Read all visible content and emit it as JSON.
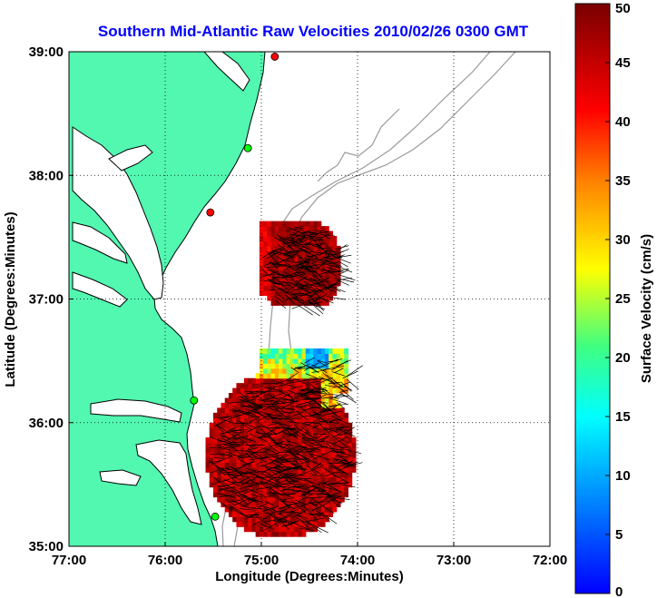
{
  "chart_data": {
    "type": "heatmap",
    "title": "Southern Mid-Atlantic Raw Velocities 2010/02/26 0300 GMT",
    "xlabel": "Longitude (Degrees:Minutes)",
    "ylabel": "Latitude (Degrees:Minutes)",
    "xlim": [
      -77,
      -72
    ],
    "ylim": [
      35,
      39
    ],
    "x_ticks": [
      {
        "value": -77,
        "label": "77:00"
      },
      {
        "value": -76,
        "label": "76:00"
      },
      {
        "value": -75,
        "label": "75:00"
      },
      {
        "value": -74,
        "label": "74:00"
      },
      {
        "value": -73,
        "label": "73:00"
      },
      {
        "value": -72,
        "label": "72:00"
      }
    ],
    "y_ticks": [
      {
        "value": 35,
        "label": "35:00"
      },
      {
        "value": 36,
        "label": "36:00"
      },
      {
        "value": 37,
        "label": "37:00"
      },
      {
        "value": 38,
        "label": "38:00"
      },
      {
        "value": 39,
        "label": "39:00"
      }
    ],
    "grid": true,
    "colorbar": {
      "label": "Surface Velocity (cm/s)",
      "range": [
        0,
        50
      ],
      "ticks": [
        0,
        5,
        10,
        15,
        20,
        25,
        30,
        35,
        40,
        45,
        50
      ],
      "tick_labels": [
        "0",
        "5",
        "10",
        "15",
        "20",
        "25",
        "30",
        "35",
        "40",
        "45",
        "50"
      ],
      "colormap": "jet"
    },
    "stations": [
      {
        "lon": -74.86,
        "lat": 38.96,
        "color": "#ff0000"
      },
      {
        "lon": -75.14,
        "lat": 38.22,
        "color": "#00ff00"
      },
      {
        "lon": -75.53,
        "lat": 37.7,
        "color": "#ff0000"
      },
      {
        "lon": -75.7,
        "lat": 36.18,
        "color": "#00ff00"
      },
      {
        "lon": -75.48,
        "lat": 35.24,
        "color": "#00ff00"
      }
    ],
    "velocity_regions": [
      {
        "name": "northern patch",
        "lon_range": [
          -75.02,
          -74.18
        ],
        "lat_range": [
          36.95,
          37.62
        ],
        "typical_speed_cm_s": 48
      },
      {
        "name": "southern patch",
        "lon_range": [
          -75.58,
          -74.05
        ],
        "lat_range": [
          35.08,
          36.58
        ],
        "typical_speed_cm_s": 45
      },
      {
        "name": "low-speed band",
        "lon_range": [
          -74.85,
          -74.3
        ],
        "lat_range": [
          36.4,
          36.58
        ],
        "typical_speed_cm_s": 15
      }
    ]
  },
  "colors": {
    "land": "#52f7b0",
    "title": "#0000ff",
    "coast": "#000000",
    "bathymetry": "#9a9a9a"
  }
}
